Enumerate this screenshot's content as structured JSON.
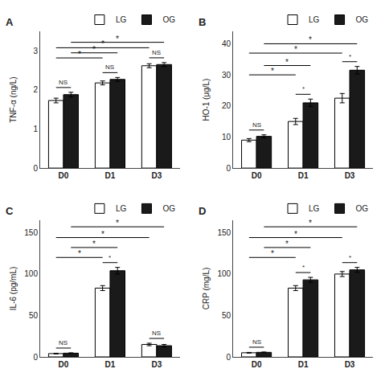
{
  "chart_data": [
    {
      "type": "bar",
      "title": "A",
      "ylabel": "TNF-α (ng/L)",
      "categories": [
        "D0",
        "D1",
        "D3"
      ],
      "series": [
        {
          "name": "LG",
          "color": "white",
          "values": [
            1.73,
            2.18,
            2.62
          ],
          "errors": [
            0.06,
            0.05,
            0.05
          ]
        },
        {
          "name": "OG",
          "color": "#1a1a1a",
          "values": [
            1.88,
            2.27,
            2.65
          ],
          "errors": [
            0.06,
            0.05,
            0.05
          ]
        }
      ],
      "ylim": [
        0,
        3.5
      ],
      "yticks": [
        0,
        1,
        2,
        3
      ],
      "grid": false,
      "legend": "upper right",
      "within_group_labels": [
        "NS",
        "NS",
        "NS"
      ],
      "comparisons": [
        {
          "from_category": "D0",
          "from_series": "LG",
          "to_category": "D1",
          "to_series": "LG",
          "label": "*",
          "height": 2.82
        },
        {
          "from_category": "D0",
          "from_series": "OG",
          "to_category": "D1",
          "to_series": "OG",
          "label": "*",
          "height": 2.95
        },
        {
          "from_category": "D0",
          "from_series": "LG",
          "to_category": "D3",
          "to_series": "LG",
          "label": "*",
          "height": 3.08
        },
        {
          "from_category": "D0",
          "from_series": "OG",
          "to_category": "D3",
          "to_series": "OG",
          "label": "*",
          "height": 3.22
        }
      ]
    },
    {
      "type": "bar",
      "title": "B",
      "ylabel": "HO-1 (μg/L)",
      "categories": [
        "D0",
        "D1",
        "D3"
      ],
      "series": [
        {
          "name": "LG",
          "color": "white",
          "values": [
            9.0,
            15.0,
            22.5
          ],
          "errors": [
            0.5,
            1.0,
            1.5
          ]
        },
        {
          "name": "OG",
          "color": "#1a1a1a",
          "values": [
            10.2,
            21.0,
            31.5
          ],
          "errors": [
            0.5,
            1.2,
            1.2
          ]
        }
      ],
      "ylim": [
        0,
        44
      ],
      "yticks": [
        0,
        10,
        20,
        30,
        40
      ],
      "grid": false,
      "legend": "upper right",
      "within_group_labels": [
        "NS",
        "*",
        "*"
      ],
      "comparisons": [
        {
          "from_category": "D0",
          "from_series": "LG",
          "to_category": "D1",
          "to_series": "LG",
          "label": "*",
          "height": 30
        },
        {
          "from_category": "D0",
          "from_series": "OG",
          "to_category": "D1",
          "to_series": "OG",
          "label": "*",
          "height": 33
        },
        {
          "from_category": "D0",
          "from_series": "LG",
          "to_category": "D3",
          "to_series": "LG",
          "label": "*",
          "height": 37
        },
        {
          "from_category": "D0",
          "from_series": "OG",
          "to_category": "D3",
          "to_series": "OG",
          "label": "*",
          "height": 40
        }
      ]
    },
    {
      "type": "bar",
      "title": "C",
      "ylabel": "IL-6 (pg/mL)",
      "categories": [
        "D0",
        "D1",
        "D3"
      ],
      "series": [
        {
          "name": "LG",
          "color": "white",
          "values": [
            4.0,
            83.0,
            15.0
          ],
          "errors": [
            0.4,
            3.0,
            1.5
          ]
        },
        {
          "name": "OG",
          "color": "#1a1a1a",
          "values": [
            4.5,
            104.0,
            13.5
          ],
          "errors": [
            0.4,
            4.0,
            1.5
          ]
        }
      ],
      "ylim": [
        0,
        165
      ],
      "yticks": [
        0,
        50,
        100,
        150
      ],
      "grid": false,
      "legend": "upper right",
      "within_group_labels": [
        "NS",
        "*",
        "NS"
      ],
      "comparisons": [
        {
          "from_category": "D0",
          "from_series": "LG",
          "to_category": "D1",
          "to_series": "LG",
          "label": "*",
          "height": 120
        },
        {
          "from_category": "D0",
          "from_series": "OG",
          "to_category": "D1",
          "to_series": "OG",
          "label": "*",
          "height": 132
        },
        {
          "from_category": "D0",
          "from_series": "LG",
          "to_category": "D3",
          "to_series": "LG",
          "label": "*",
          "height": 144
        },
        {
          "from_category": "D0",
          "from_series": "OG",
          "to_category": "D3",
          "to_series": "OG",
          "label": "*",
          "height": 157
        }
      ]
    },
    {
      "type": "bar",
      "title": "D",
      "ylabel": "CRP (mg/L)",
      "categories": [
        "D0",
        "D1",
        "D3"
      ],
      "series": [
        {
          "name": "LG",
          "color": "white",
          "values": [
            5.0,
            83.0,
            100.0
          ],
          "errors": [
            0.4,
            3.0,
            3.0
          ]
        },
        {
          "name": "OG",
          "color": "#1a1a1a",
          "values": [
            5.5,
            93.0,
            105.0
          ],
          "errors": [
            0.4,
            3.0,
            3.0
          ]
        }
      ],
      "ylim": [
        0,
        165
      ],
      "yticks": [
        0,
        50,
        100,
        150
      ],
      "grid": false,
      "legend": "upper right",
      "within_group_labels": [
        "NS",
        "*",
        "*"
      ],
      "comparisons": [
        {
          "from_category": "D0",
          "from_series": "LG",
          "to_category": "D1",
          "to_series": "LG",
          "label": "*",
          "height": 120
        },
        {
          "from_category": "D0",
          "from_series": "OG",
          "to_category": "D1",
          "to_series": "OG",
          "label": "*",
          "height": 132
        },
        {
          "from_category": "D0",
          "from_series": "LG",
          "to_category": "D3",
          "to_series": "LG",
          "label": "*",
          "height": 144
        },
        {
          "from_category": "D0",
          "from_series": "OG",
          "to_category": "D3",
          "to_series": "OG",
          "label": "*",
          "height": 157
        }
      ]
    }
  ]
}
